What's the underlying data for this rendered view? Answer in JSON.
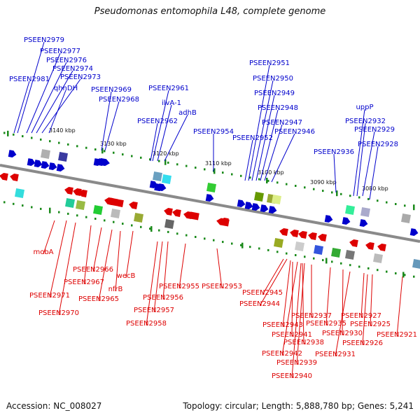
{
  "title": "Pseudomonas entomophila L48, complete genome",
  "accession_text": "Accession: NC_008027",
  "meta_text": "Topology: circular; Length: 5,888,780 bp; Genes: 5,241",
  "colors": {
    "forward": "#0000cc",
    "reverse": "#dd0000",
    "backbone": "#8a8a8a",
    "tick": "#1a8a1a"
  },
  "kbp_labels": [
    "3140 kbp",
    "3130 kbp",
    "3120 kbp",
    "3110 kbp",
    "3100 kbp",
    "3090 kbp",
    "3080 kbp"
  ],
  "forward_labels": [
    "PSEEN2979",
    "PSEEN2977",
    "PSEEN2976",
    "PSEEN2974",
    "PSEEN2973",
    "PSEEN2981",
    "qhnDH",
    "PSEEN2969",
    "PSEEN2968",
    "PSEEN2961",
    "ilvA-1",
    "adhB",
    "PSEEN2962",
    "PSEEN2954",
    "PSEEN2951",
    "PSEEN2950",
    "PSEEN2949",
    "PSEEN2948",
    "PSEEN2947",
    "PSEEN2946",
    "PSEEN2952",
    "PSEEN2936",
    "uppP",
    "PSEEN2932",
    "PSEEN2929",
    "PSEEN2928"
  ],
  "reverse_labels": [
    "mobA",
    "PSEEN2966",
    "PSEEN2967",
    "PSEEN2971",
    "PSEEN2970",
    "PSEEN2965",
    "wecB",
    "nfrB",
    "PSEEN2955",
    "PSEEN2956",
    "PSEEN2957",
    "PSEEN2958",
    "PSEEN2953",
    "PSEEN2945",
    "PSEEN2944",
    "PSEEN2943",
    "PSEEN2942",
    "PSEEN2941",
    "PSEEN2940",
    "PSEEN2939",
    "PSEEN2938",
    "PSEEN2937",
    "PSEEN2935",
    "PSEEN2930",
    "PSEEN2931",
    "PSEEN2927",
    "PSEEN2925",
    "PSEEN2926",
    "PSEEN2921"
  ]
}
